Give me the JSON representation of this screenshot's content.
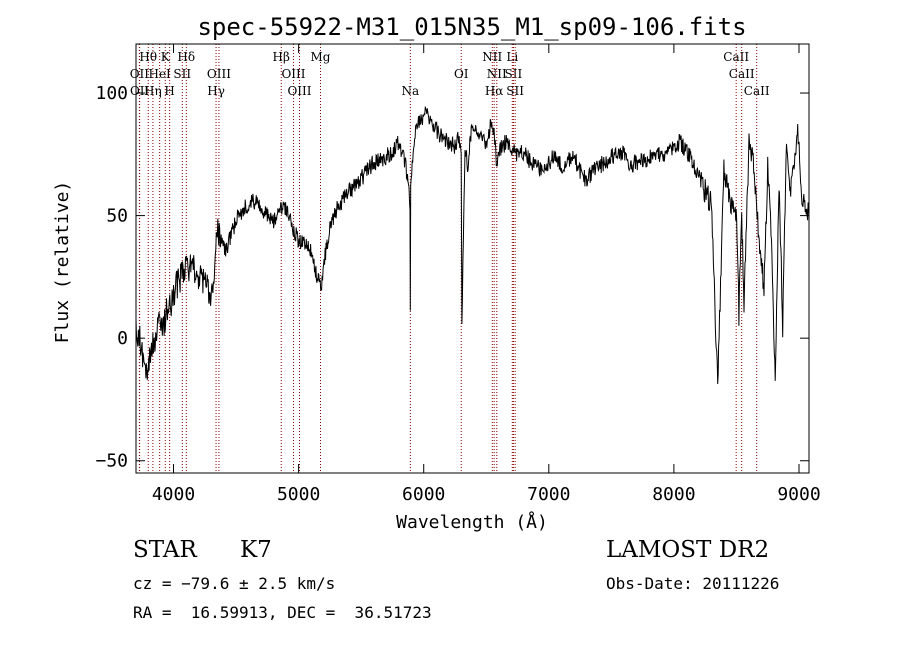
{
  "chart_data": {
    "type": "line",
    "title": "spec-55922-M31_015N35_M1_sp09-106.fits",
    "xlabel": "Wavelength (Å)",
    "ylabel": "Flux (relative)",
    "xlim": [
      3700,
      9080
    ],
    "ylim": [
      -55,
      120
    ],
    "xticks": [
      4000,
      5000,
      6000,
      7000,
      8000,
      9000
    ],
    "xtick_labels": [
      "4000",
      "5000",
      "6000",
      "7000",
      "8000",
      "9000"
    ],
    "yticks": [
      -50,
      0,
      50,
      100
    ],
    "ytick_labels": [
      "−50",
      "0",
      "50",
      "100"
    ],
    "grid": false,
    "legend": "none",
    "line_color": "#000000",
    "marker_color": "#8b0000",
    "lines": [
      {
        "label": "Hθ",
        "wavelength": 3798,
        "row": 0
      },
      {
        "label": "K",
        "wavelength": 3934,
        "row": 0
      },
      {
        "label": "Hδ",
        "wavelength": 4102,
        "row": 0
      },
      {
        "label": "Hβ",
        "wavelength": 4861,
        "row": 0
      },
      {
        "label": "Mg",
        "wavelength": 5175,
        "row": 0
      },
      {
        "label": "NII",
        "wavelength": 6548,
        "row": 0
      },
      {
        "label": "Li",
        "wavelength": 6708,
        "row": 0
      },
      {
        "label": "CaII",
        "wavelength": 8498,
        "row": 0
      },
      {
        "label": "OII",
        "wavelength": 3727,
        "row": 1
      },
      {
        "label": "HeI",
        "wavelength": 3889,
        "row": 1
      },
      {
        "label": "SII",
        "wavelength": 4070,
        "row": 1
      },
      {
        "label": "OIII",
        "wavelength": 4363,
        "row": 1
      },
      {
        "label": "OIII",
        "wavelength": 4959,
        "row": 1
      },
      {
        "label": "OI",
        "wavelength": 6300,
        "row": 1
      },
      {
        "label": "NII",
        "wavelength": 6584,
        "row": 1
      },
      {
        "label": "SII",
        "wavelength": 6717,
        "row": 1
      },
      {
        "label": "CaII",
        "wavelength": 8542,
        "row": 1
      },
      {
        "label": "OII",
        "wavelength": 3729,
        "row": 2
      },
      {
        "label": "Hη",
        "wavelength": 3835,
        "row": 2
      },
      {
        "label": "H",
        "wavelength": 3969,
        "row": 2
      },
      {
        "label": "Hγ",
        "wavelength": 4340,
        "row": 2
      },
      {
        "label": "OIII",
        "wavelength": 5007,
        "row": 2
      },
      {
        "label": "Na",
        "wavelength": 5893,
        "row": 2
      },
      {
        "label": "Hα",
        "wavelength": 6563,
        "row": 2
      },
      {
        "label": "SII",
        "wavelength": 6731,
        "row": 2
      },
      {
        "label": "CaII",
        "wavelength": 8662,
        "row": 2
      }
    ],
    "series": [
      {
        "x": [
          3700,
          3730,
          3760,
          3790,
          3820,
          3850,
          3880,
          3910,
          3940,
          3970,
          4000,
          4030,
          4060,
          4100,
          4150,
          4200,
          4250,
          4300,
          4330,
          4350,
          4380,
          4420,
          4460,
          4500,
          4550,
          4600,
          4650,
          4700,
          4750,
          4800,
          4850,
          4900,
          4950,
          5000,
          5050,
          5100,
          5150,
          5180,
          5200,
          5250,
          5300,
          5350,
          5400,
          5450,
          5500,
          5550,
          5600,
          5650,
          5700,
          5750,
          5800,
          5850,
          5890,
          5893,
          5896,
          5920,
          5950,
          5990,
          6020,
          6060,
          6100,
          6150,
          6200,
          6250,
          6280,
          6300,
          6305,
          6330,
          6350,
          6380,
          6400,
          6450,
          6500,
          6540,
          6563,
          6580,
          6620,
          6660,
          6700,
          6750,
          6800,
          6850,
          6900,
          6950,
          7000,
          7050,
          7100,
          7150,
          7200,
          7250,
          7300,
          7350,
          7400,
          7450,
          7500,
          7550,
          7600,
          7650,
          7700,
          7750,
          7800,
          7850,
          7900,
          7950,
          8000,
          8050,
          8100,
          8150,
          8200,
          8250,
          8300,
          8350,
          8400,
          8450,
          8498,
          8520,
          8542,
          8560,
          8600,
          8630,
          8662,
          8690,
          8720,
          8750,
          8780,
          8810,
          8840,
          8870,
          8900,
          8930,
          8960,
          8990,
          9020,
          9050,
          9080
        ],
        "y": [
          5,
          0,
          -8,
          -12,
          -5,
          0,
          5,
          2,
          10,
          12,
          18,
          22,
          25,
          28,
          30,
          25,
          22,
          18,
          30,
          45,
          40,
          35,
          42,
          48,
          52,
          55,
          56,
          52,
          50,
          48,
          54,
          52,
          45,
          40,
          38,
          35,
          25,
          20,
          30,
          45,
          52,
          56,
          60,
          62,
          65,
          68,
          72,
          72,
          74,
          76,
          80,
          72,
          55,
          12,
          65,
          80,
          88,
          90,
          92,
          88,
          85,
          82,
          80,
          78,
          82,
          75,
          5,
          78,
          70,
          85,
          88,
          82,
          80,
          88,
          85,
          72,
          78,
          80,
          78,
          74,
          76,
          72,
          70,
          68,
          72,
          74,
          70,
          72,
          74,
          68,
          64,
          68,
          70,
          72,
          74,
          75,
          76,
          70,
          72,
          72,
          74,
          76,
          74,
          75,
          78,
          80,
          76,
          72,
          65,
          60,
          55,
          -20,
          70,
          55,
          50,
          10,
          50,
          15,
          80,
          75,
          55,
          35,
          20,
          70,
          40,
          -20,
          65,
          5,
          80,
          60,
          70,
          85,
          60,
          55,
          50
        ]
      }
    ]
  },
  "info": {
    "object_class": "STAR",
    "subclass": "K7",
    "survey": "LAMOST DR2",
    "redshift": "cz = −79.6 ± 2.5 km/s",
    "obs_date": "Obs-Date: 20111226",
    "coords": "RA =  16.59913, DEC =  36.51723"
  }
}
